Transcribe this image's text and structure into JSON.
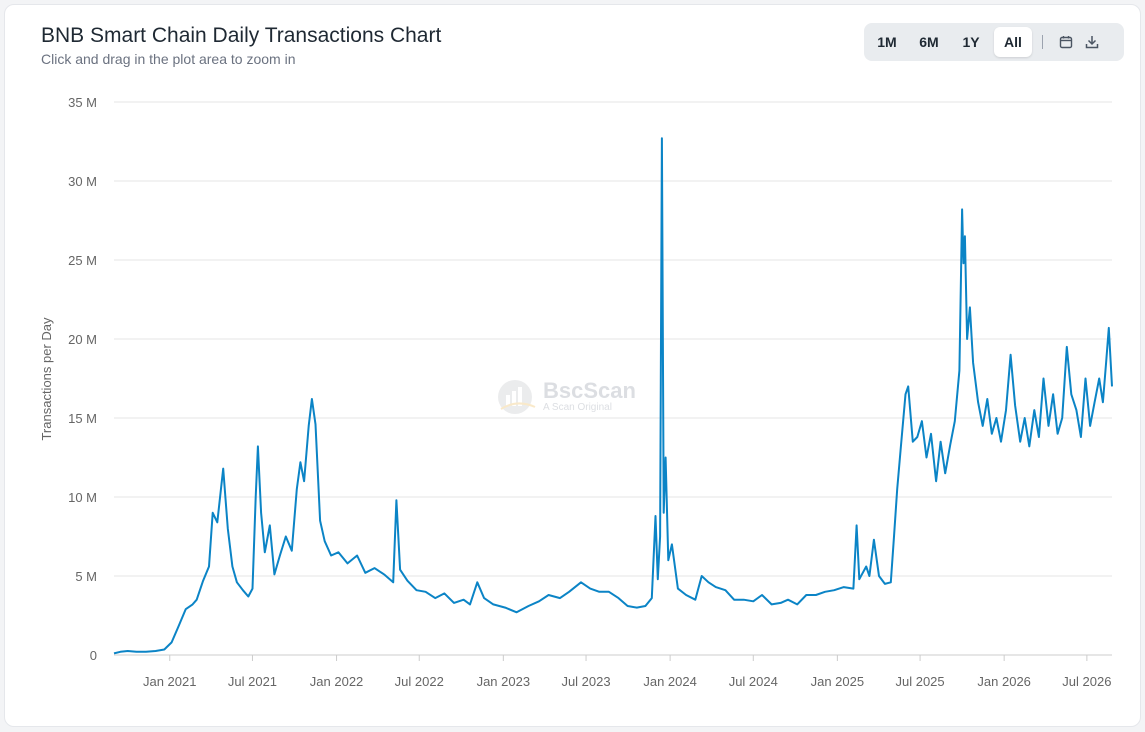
{
  "header": {
    "title": "BNB Smart Chain Daily Transactions Chart",
    "subtitle": "Click and drag in the plot area to zoom in"
  },
  "toolbar": {
    "ranges": [
      "1M",
      "6M",
      "1Y",
      "All"
    ],
    "active": "All",
    "calendar_icon": "calendar-icon",
    "download_icon": "download-icon"
  },
  "watermark": {
    "brand": "BscScan",
    "tagline": "A Scan Original",
    "icon": "bscscan-logo"
  },
  "colors": {
    "line": "#0b84c6",
    "grid": "#e6e6e6",
    "text": "#666666"
  },
  "chart_data": {
    "type": "line",
    "ylabel": "Transactions per Day",
    "y_tick_labels": [
      "0",
      "5 M",
      "10 M",
      "15 M",
      "20 M",
      "25 M",
      "30 M",
      "35 M"
    ],
    "y_ticks": [
      0,
      5,
      10,
      15,
      20,
      25,
      30,
      35
    ],
    "ylim": [
      0,
      35
    ],
    "x_tick_labels": [
      "Jan 2021",
      "Jul 2021",
      "Jan 2022",
      "Jul 2022",
      "Jan 2023",
      "Jul 2023",
      "Jan 2024",
      "Jul 2024",
      "Jan 2025",
      "Jul 2025",
      "Jan 2026",
      "Jul 2026"
    ],
    "x_tick_dates": [
      "2021-01-01",
      "2021-07-01",
      "2022-01-01",
      "2022-07-01",
      "2023-01-01",
      "2023-07-01",
      "2024-01-01",
      "2024-07-01",
      "2025-01-01",
      "2025-07-01",
      "2026-01-01",
      "2026-07-01"
    ],
    "xlim": [
      "2020-09-01",
      "2026-08-25"
    ],
    "grid": true,
    "legend": "none",
    "series": [
      {
        "unit": "M",
        "points": [
          [
            "2020-09-01",
            0.1
          ],
          [
            "2020-09-15",
            0.2
          ],
          [
            "2020-10-01",
            0.25
          ],
          [
            "2020-10-20",
            0.2
          ],
          [
            "2020-11-10",
            0.2
          ],
          [
            "2020-12-01",
            0.25
          ],
          [
            "2020-12-20",
            0.35
          ],
          [
            "2021-01-05",
            0.8
          ],
          [
            "2021-01-20",
            1.8
          ],
          [
            "2021-02-05",
            2.9
          ],
          [
            "2021-02-20",
            3.2
          ],
          [
            "2021-03-01",
            3.5
          ],
          [
            "2021-03-15",
            4.7
          ],
          [
            "2021-03-28",
            5.6
          ],
          [
            "2021-04-05",
            9.0
          ],
          [
            "2021-04-15",
            8.4
          ],
          [
            "2021-04-28",
            11.8
          ],
          [
            "2021-05-08",
            8.0
          ],
          [
            "2021-05-18",
            5.6
          ],
          [
            "2021-05-28",
            4.6
          ],
          [
            "2021-06-10",
            4.1
          ],
          [
            "2021-06-22",
            3.7
          ],
          [
            "2021-07-01",
            4.2
          ],
          [
            "2021-07-08",
            10.0
          ],
          [
            "2021-07-13",
            13.2
          ],
          [
            "2021-07-20",
            9.0
          ],
          [
            "2021-07-28",
            6.5
          ],
          [
            "2021-08-08",
            8.2
          ],
          [
            "2021-08-18",
            5.1
          ],
          [
            "2021-08-30",
            6.3
          ],
          [
            "2021-09-12",
            7.5
          ],
          [
            "2021-09-25",
            6.6
          ],
          [
            "2021-10-06",
            10.5
          ],
          [
            "2021-10-14",
            12.2
          ],
          [
            "2021-10-22",
            11.0
          ],
          [
            "2021-11-01",
            14.5
          ],
          [
            "2021-11-08",
            16.2
          ],
          [
            "2021-11-16",
            14.6
          ],
          [
            "2021-11-26",
            8.5
          ],
          [
            "2021-12-06",
            7.2
          ],
          [
            "2021-12-20",
            6.3
          ],
          [
            "2022-01-05",
            6.5
          ],
          [
            "2022-01-25",
            5.8
          ],
          [
            "2022-02-15",
            6.3
          ],
          [
            "2022-03-05",
            5.2
          ],
          [
            "2022-03-25",
            5.5
          ],
          [
            "2022-04-15",
            5.1
          ],
          [
            "2022-05-05",
            4.6
          ],
          [
            "2022-05-12",
            9.8
          ],
          [
            "2022-05-20",
            5.4
          ],
          [
            "2022-06-05",
            4.7
          ],
          [
            "2022-06-25",
            4.1
          ],
          [
            "2022-07-15",
            4.0
          ],
          [
            "2022-08-05",
            3.6
          ],
          [
            "2022-08-25",
            3.9
          ],
          [
            "2022-09-15",
            3.3
          ],
          [
            "2022-10-06",
            3.5
          ],
          [
            "2022-10-20",
            3.2
          ],
          [
            "2022-11-05",
            4.6
          ],
          [
            "2022-11-20",
            3.6
          ],
          [
            "2022-12-10",
            3.2
          ],
          [
            "2023-01-05",
            3.0
          ],
          [
            "2023-01-30",
            2.7
          ],
          [
            "2023-02-25",
            3.1
          ],
          [
            "2023-03-20",
            3.4
          ],
          [
            "2023-04-10",
            3.8
          ],
          [
            "2023-05-05",
            3.6
          ],
          [
            "2023-05-25",
            4.0
          ],
          [
            "2023-06-20",
            4.6
          ],
          [
            "2023-07-10",
            4.2
          ],
          [
            "2023-07-30",
            4.0
          ],
          [
            "2023-08-20",
            4.0
          ],
          [
            "2023-09-10",
            3.6
          ],
          [
            "2023-09-30",
            3.1
          ],
          [
            "2023-10-20",
            3.0
          ],
          [
            "2023-11-08",
            3.1
          ],
          [
            "2023-11-22",
            3.6
          ],
          [
            "2023-11-30",
            8.8
          ],
          [
            "2023-12-05",
            4.8
          ],
          [
            "2023-12-10",
            7.5
          ],
          [
            "2023-12-14",
            32.7
          ],
          [
            "2023-12-18",
            9.0
          ],
          [
            "2023-12-22",
            12.5
          ],
          [
            "2023-12-28",
            6.0
          ],
          [
            "2024-01-05",
            7.0
          ],
          [
            "2024-01-18",
            4.2
          ],
          [
            "2024-02-05",
            3.8
          ],
          [
            "2024-02-25",
            3.5
          ],
          [
            "2024-03-10",
            5.0
          ],
          [
            "2024-03-25",
            4.6
          ],
          [
            "2024-04-10",
            4.3
          ],
          [
            "2024-05-01",
            4.1
          ],
          [
            "2024-05-20",
            3.5
          ],
          [
            "2024-06-10",
            3.5
          ],
          [
            "2024-07-01",
            3.4
          ],
          [
            "2024-07-20",
            3.8
          ],
          [
            "2024-08-10",
            3.2
          ],
          [
            "2024-08-30",
            3.3
          ],
          [
            "2024-09-15",
            3.5
          ],
          [
            "2024-10-05",
            3.2
          ],
          [
            "2024-10-25",
            3.8
          ],
          [
            "2024-11-15",
            3.8
          ],
          [
            "2024-12-05",
            4.0
          ],
          [
            "2024-12-25",
            4.1
          ],
          [
            "2025-01-15",
            4.3
          ],
          [
            "2025-02-05",
            4.2
          ],
          [
            "2025-02-12",
            8.2
          ],
          [
            "2025-02-18",
            4.8
          ],
          [
            "2025-03-05",
            5.6
          ],
          [
            "2025-03-12",
            5.0
          ],
          [
            "2025-03-22",
            7.3
          ],
          [
            "2025-04-02",
            5.0
          ],
          [
            "2025-04-15",
            4.5
          ],
          [
            "2025-04-28",
            4.6
          ],
          [
            "2025-05-05",
            7.5
          ],
          [
            "2025-05-12",
            10.5
          ],
          [
            "2025-05-20",
            13.2
          ],
          [
            "2025-05-30",
            16.5
          ],
          [
            "2025-06-05",
            17.0
          ],
          [
            "2025-06-15",
            13.5
          ],
          [
            "2025-06-25",
            13.8
          ],
          [
            "2025-07-05",
            14.8
          ],
          [
            "2025-07-15",
            12.5
          ],
          [
            "2025-07-25",
            14.0
          ],
          [
            "2025-08-05",
            11.0
          ],
          [
            "2025-08-15",
            13.5
          ],
          [
            "2025-08-25",
            11.5
          ],
          [
            "2025-09-05",
            13.3
          ],
          [
            "2025-09-15",
            14.8
          ],
          [
            "2025-09-25",
            18.0
          ],
          [
            "2025-10-01",
            28.2
          ],
          [
            "2025-10-04",
            24.8
          ],
          [
            "2025-10-07",
            26.5
          ],
          [
            "2025-10-12",
            20.0
          ],
          [
            "2025-10-18",
            22.0
          ],
          [
            "2025-10-25",
            18.5
          ],
          [
            "2025-11-05",
            16.0
          ],
          [
            "2025-11-15",
            14.5
          ],
          [
            "2025-11-25",
            16.2
          ],
          [
            "2025-12-05",
            14.0
          ],
          [
            "2025-12-15",
            15.0
          ],
          [
            "2025-12-25",
            13.5
          ],
          [
            "2026-01-05",
            15.5
          ],
          [
            "2026-01-15",
            19.0
          ],
          [
            "2026-01-25",
            15.8
          ],
          [
            "2026-02-05",
            13.5
          ],
          [
            "2026-02-15",
            15.0
          ],
          [
            "2026-02-25",
            13.2
          ],
          [
            "2026-03-08",
            15.5
          ],
          [
            "2026-03-18",
            13.8
          ],
          [
            "2026-03-28",
            17.5
          ],
          [
            "2026-04-08",
            14.5
          ],
          [
            "2026-04-18",
            16.5
          ],
          [
            "2026-04-28",
            14.0
          ],
          [
            "2026-05-08",
            15.0
          ],
          [
            "2026-05-18",
            19.5
          ],
          [
            "2026-05-28",
            16.5
          ],
          [
            "2026-06-08",
            15.5
          ],
          [
            "2026-06-18",
            13.8
          ],
          [
            "2026-06-28",
            17.5
          ],
          [
            "2026-07-08",
            14.5
          ],
          [
            "2026-07-18",
            16.0
          ],
          [
            "2026-07-28",
            17.5
          ],
          [
            "2026-08-05",
            16.0
          ],
          [
            "2026-08-12",
            18.5
          ],
          [
            "2026-08-18",
            20.7
          ],
          [
            "2026-08-25",
            17.0
          ]
        ]
      }
    ]
  }
}
